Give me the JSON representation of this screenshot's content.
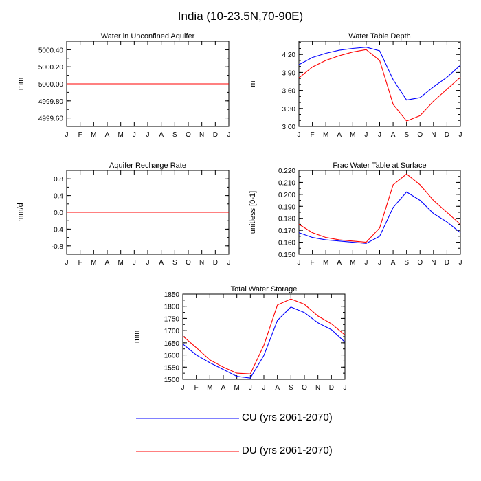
{
  "main_title": "India (10-23.5N,70-90E)",
  "colors": {
    "cu": "#0000ff",
    "du": "#ff0000",
    "axis": "#000000"
  },
  "legend": [
    {
      "label": "CU (yrs 2061-2070)",
      "color": "#0000ff"
    },
    {
      "label": "DU (yrs 2061-2070)",
      "color": "#ff0000"
    }
  ],
  "chart_data": [
    {
      "type": "line",
      "title": "Water in Unconfined Aquifer",
      "xlabel": "",
      "ylabel": "mm",
      "categories": [
        "J",
        "F",
        "M",
        "A",
        "M",
        "J",
        "J",
        "A",
        "S",
        "O",
        "N",
        "D",
        "J"
      ],
      "ylim": [
        4999.5,
        5000.5
      ],
      "yticks": [
        4999.6,
        4999.8,
        5000.0,
        5000.2,
        5000.4
      ],
      "ytick_labels": [
        "4999.60",
        "4999.80",
        "5000.00",
        "5000.20",
        "5000.40"
      ],
      "yminor": 0.1,
      "series": [
        {
          "name": "CU (yrs 2061-2070)",
          "color": "#0000ff",
          "values": [
            5000,
            5000,
            5000,
            5000,
            5000,
            5000,
            5000,
            5000,
            5000,
            5000,
            5000,
            5000,
            5000
          ]
        },
        {
          "name": "DU (yrs 2061-2070)",
          "color": "#ff0000",
          "values": [
            5000,
            5000,
            5000,
            5000,
            5000,
            5000,
            5000,
            5000,
            5000,
            5000,
            5000,
            5000,
            5000
          ]
        }
      ]
    },
    {
      "type": "line",
      "title": "Water Table Depth",
      "xlabel": "",
      "ylabel": "m",
      "categories": [
        "J",
        "F",
        "M",
        "A",
        "M",
        "J",
        "J",
        "A",
        "S",
        "O",
        "N",
        "D",
        "J"
      ],
      "ylim": [
        3.0,
        4.42
      ],
      "yticks": [
        3.0,
        3.3,
        3.6,
        3.9,
        4.2
      ],
      "ytick_labels": [
        "3.00",
        "3.30",
        "3.60",
        "3.90",
        "4.20"
      ],
      "yminor": 0.1,
      "series": [
        {
          "name": "CU (yrs 2061-2070)",
          "color": "#0000ff",
          "values": [
            4.03,
            4.15,
            4.22,
            4.27,
            4.3,
            4.32,
            4.26,
            3.78,
            3.44,
            3.48,
            3.66,
            3.82,
            4.02
          ]
        },
        {
          "name": "DU (yrs 2061-2070)",
          "color": "#ff0000",
          "values": [
            3.81,
            3.99,
            4.1,
            4.18,
            4.24,
            4.28,
            4.1,
            3.37,
            3.09,
            3.18,
            3.42,
            3.62,
            3.82
          ]
        }
      ]
    },
    {
      "type": "line",
      "title": "Aquifer Recharge Rate",
      "xlabel": "",
      "ylabel": "mm/d",
      "categories": [
        "J",
        "F",
        "M",
        "A",
        "M",
        "J",
        "J",
        "A",
        "S",
        "O",
        "N",
        "D",
        "J"
      ],
      "ylim": [
        -1.0,
        1.0
      ],
      "yticks": [
        -0.8,
        -0.4,
        0.0,
        0.4,
        0.8
      ],
      "ytick_labels": [
        "-0.8",
        "-0.4",
        "0.0",
        "0.4",
        "0.8"
      ],
      "yminor": 0.2,
      "series": [
        {
          "name": "CU (yrs 2061-2070)",
          "color": "#0000ff",
          "values": [
            0,
            0,
            0,
            0,
            0,
            0,
            0,
            0,
            0,
            0,
            0,
            0,
            0
          ]
        },
        {
          "name": "DU (yrs 2061-2070)",
          "color": "#ff0000",
          "values": [
            0,
            0,
            0,
            0,
            0,
            0,
            0,
            0,
            0,
            0,
            0,
            0,
            0
          ]
        }
      ]
    },
    {
      "type": "line",
      "title": "Frac Water Table at Surface",
      "xlabel": "",
      "ylabel": "unitless [0-1]",
      "categories": [
        "J",
        "F",
        "M",
        "A",
        "M",
        "J",
        "J",
        "A",
        "S",
        "O",
        "N",
        "D",
        "J"
      ],
      "ylim": [
        0.15,
        0.22
      ],
      "yticks": [
        0.15,
        0.16,
        0.17,
        0.18,
        0.19,
        0.2,
        0.21,
        0.22
      ],
      "ytick_labels": [
        "0.150",
        "0.160",
        "0.170",
        "0.180",
        "0.190",
        "0.200",
        "0.210",
        "0.220"
      ],
      "yminor": 0.005,
      "series": [
        {
          "name": "CU (yrs 2061-2070)",
          "color": "#0000ff",
          "values": [
            0.168,
            0.164,
            0.162,
            0.161,
            0.16,
            0.159,
            0.165,
            0.189,
            0.202,
            0.195,
            0.184,
            0.177,
            0.168
          ]
        },
        {
          "name": "DU (yrs 2061-2070)",
          "color": "#ff0000",
          "values": [
            0.175,
            0.168,
            0.164,
            0.162,
            0.161,
            0.16,
            0.172,
            0.208,
            0.217,
            0.208,
            0.195,
            0.185,
            0.175
          ]
        }
      ]
    },
    {
      "type": "line",
      "title": "Total Water Storage",
      "xlabel": "",
      "ylabel": "mm",
      "categories": [
        "J",
        "F",
        "M",
        "A",
        "M",
        "J",
        "J",
        "A",
        "S",
        "O",
        "N",
        "D",
        "J"
      ],
      "ylim": [
        1500,
        1850
      ],
      "yticks": [
        1500,
        1550,
        1600,
        1650,
        1700,
        1750,
        1800,
        1850
      ],
      "ytick_labels": [
        "1500",
        "1550",
        "1600",
        "1650",
        "1700",
        "1750",
        "1800",
        "1850"
      ],
      "yminor": 25,
      "series": [
        {
          "name": "CU (yrs 2061-2070)",
          "color": "#0000ff",
          "values": [
            1645,
            1600,
            1568,
            1540,
            1512,
            1505,
            1598,
            1742,
            1797,
            1774,
            1732,
            1704,
            1653
          ]
        },
        {
          "name": "DU (yrs 2061-2070)",
          "color": "#ff0000",
          "values": [
            1678,
            1630,
            1580,
            1550,
            1525,
            1522,
            1640,
            1805,
            1830,
            1808,
            1760,
            1728,
            1682
          ]
        }
      ]
    }
  ]
}
